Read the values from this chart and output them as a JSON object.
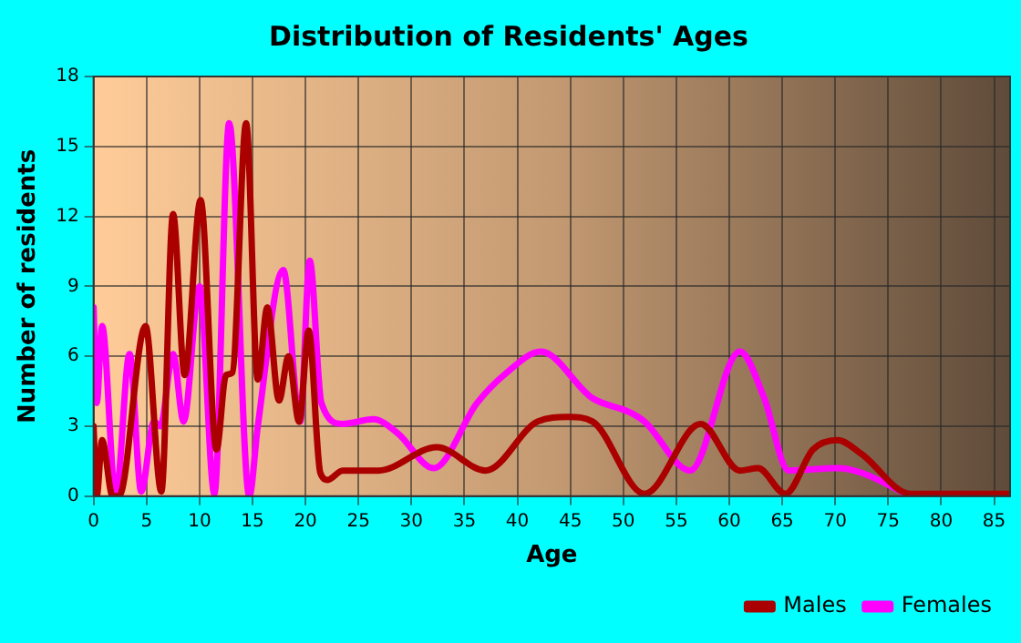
{
  "chart_data": {
    "type": "line",
    "title": "Distribution of Residents' Ages",
    "xlabel": "Age",
    "ylabel": "Number of residents",
    "xlim": [
      0,
      86.5
    ],
    "xticks": [
      0,
      5,
      10,
      15,
      20,
      25,
      30,
      35,
      40,
      45,
      50,
      55,
      60,
      65,
      70,
      75,
      80,
      85
    ],
    "ylim": [
      0,
      18
    ],
    "yticks": [
      0,
      3,
      6,
      9,
      12,
      15,
      18
    ],
    "grid": true,
    "legend": "bottom right",
    "marker": "none",
    "line_style": "solid",
    "series": [
      {
        "name": "Males",
        "color": "#aa0000",
        "x": [
          0,
          0.3,
          0.8,
          1.8,
          2.4,
          4.9,
          6.4,
          7.5,
          8.6,
          10.1,
          11.6,
          12.5,
          13.1,
          14.4,
          15.5,
          16.4,
          17.5,
          18.4,
          19.4,
          20.3,
          21.4,
          22.1,
          23.5,
          26.9,
          32.4,
          37,
          41.9,
          44.8,
          47.1,
          52,
          57.3,
          61,
          62.7,
          65.3,
          67.9,
          70.2,
          72.5,
          77.1,
          81.7,
          86.3
        ],
        "values": [
          3,
          0,
          2.4,
          0,
          0,
          7.3,
          0.2,
          12.1,
          5.2,
          12.7,
          2,
          5.2,
          5.3,
          16,
          5,
          8.1,
          4.1,
          6,
          3.2,
          7.1,
          1,
          0.7,
          1.1,
          1.1,
          2.1,
          1.1,
          3.2,
          3.4,
          3.2,
          0.1,
          3.1,
          1.1,
          1.2,
          0.1,
          2,
          2.4,
          1.8,
          0.1,
          0.1,
          0.1
        ]
      },
      {
        "name": "Females",
        "color": "#ff00ff",
        "x": [
          0,
          0.3,
          0.8,
          2.1,
          3.4,
          4.5,
          5.7,
          6.3,
          7.5,
          8.5,
          10,
          11.4,
          12.8,
          14.7,
          15.5,
          17.9,
          19.5,
          20.4,
          21.5,
          23.5,
          26.4,
          28.7,
          32.1,
          36.2,
          39,
          42.2,
          47.1,
          50.6,
          52,
          56.3,
          61,
          63.3,
          65.6,
          70.2,
          72.5,
          77.1
        ],
        "values": [
          8.1,
          4,
          7.3,
          0,
          6.1,
          0.2,
          3.2,
          3,
          6.1,
          3.2,
          9,
          0.1,
          16,
          0,
          3,
          9.7,
          3.2,
          10.1,
          4,
          3.1,
          3.3,
          2.7,
          1.2,
          4,
          5.3,
          6.2,
          4.2,
          3.6,
          3.2,
          1.1,
          6.2,
          4.2,
          1.1,
          1.2,
          1,
          0
        ]
      }
    ]
  }
}
